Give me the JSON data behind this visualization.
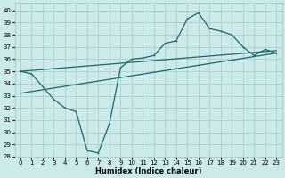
{
  "xlabel": "Humidex (Indice chaleur)",
  "bg_color": "#cceaea",
  "grid_color": "#aacfcf",
  "line_color": "#1a6868",
  "xlim": [
    -0.5,
    23.5
  ],
  "ylim": [
    28,
    40.6
  ],
  "x_ticks": [
    0,
    1,
    2,
    3,
    4,
    5,
    6,
    7,
    8,
    9,
    10,
    11,
    12,
    13,
    14,
    15,
    16,
    17,
    18,
    19,
    20,
    21,
    22,
    23
  ],
  "y_ticks": [
    28,
    29,
    30,
    31,
    32,
    33,
    34,
    35,
    36,
    37,
    38,
    39,
    40
  ],
  "series": [
    {
      "x": [
        0,
        1,
        3,
        4,
        5,
        6,
        7,
        8,
        9,
        10,
        11,
        12,
        13,
        14,
        15,
        16,
        17,
        18,
        19,
        20,
        21,
        22,
        23
      ],
      "y": [
        35.0,
        34.8,
        32.7,
        32.0,
        31.7,
        28.5,
        28.3,
        30.7,
        35.3,
        36.0,
        36.1,
        36.3,
        37.3,
        37.5,
        39.3,
        39.8,
        38.5,
        38.3,
        38.0,
        37.0,
        36.3,
        36.8,
        36.5
      ],
      "marker": true
    },
    {
      "x": [
        0,
        23
      ],
      "y": [
        35.0,
        36.7
      ],
      "marker": false
    },
    {
      "x": [
        0,
        23
      ],
      "y": [
        33.2,
        36.5
      ],
      "marker": false
    }
  ]
}
